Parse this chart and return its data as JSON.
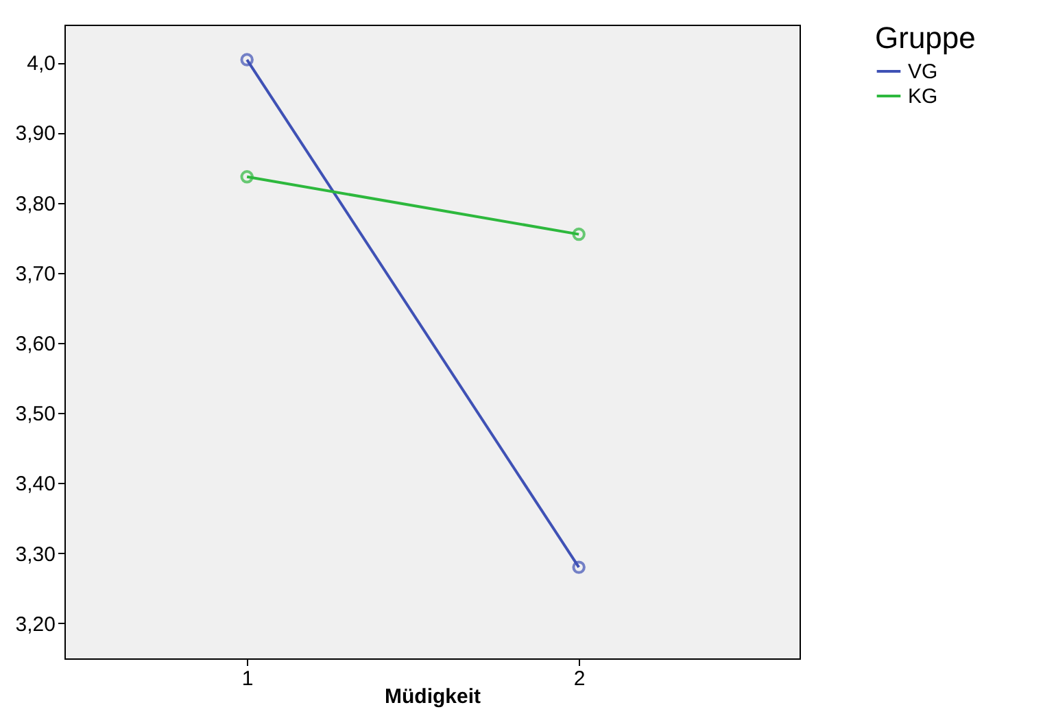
{
  "chart_data": {
    "type": "line",
    "x": [
      1,
      2
    ],
    "xlabel": "Müdigkeit",
    "legend_title": "Gruppe",
    "legend": "top right",
    "marker": "circle",
    "line_style": "solid",
    "grid": false,
    "series": [
      {
        "name": "VG",
        "color": "#3f51b5",
        "values": [
          4.004,
          3.28
        ]
      },
      {
        "name": "KG",
        "color": "#2db83d",
        "values": [
          3.837,
          3.755
        ]
      }
    ],
    "xlim": [
      0.45,
      2.665
    ],
    "xticks": [
      1,
      2
    ],
    "ylim": [
      3.15,
      4.054
    ],
    "yticks": [
      {
        "value": 3.2,
        "label": "3,20"
      },
      {
        "value": 3.3,
        "label": "3,30"
      },
      {
        "value": 3.4,
        "label": "3,40"
      },
      {
        "value": 3.5,
        "label": "3,50"
      },
      {
        "value": 3.6,
        "label": "3,60"
      },
      {
        "value": 3.7,
        "label": "3,70"
      },
      {
        "value": 3.8,
        "label": "3,80"
      },
      {
        "value": 3.9,
        "label": "3,90"
      },
      {
        "value": 4.0,
        "label": "4,0"
      }
    ]
  }
}
